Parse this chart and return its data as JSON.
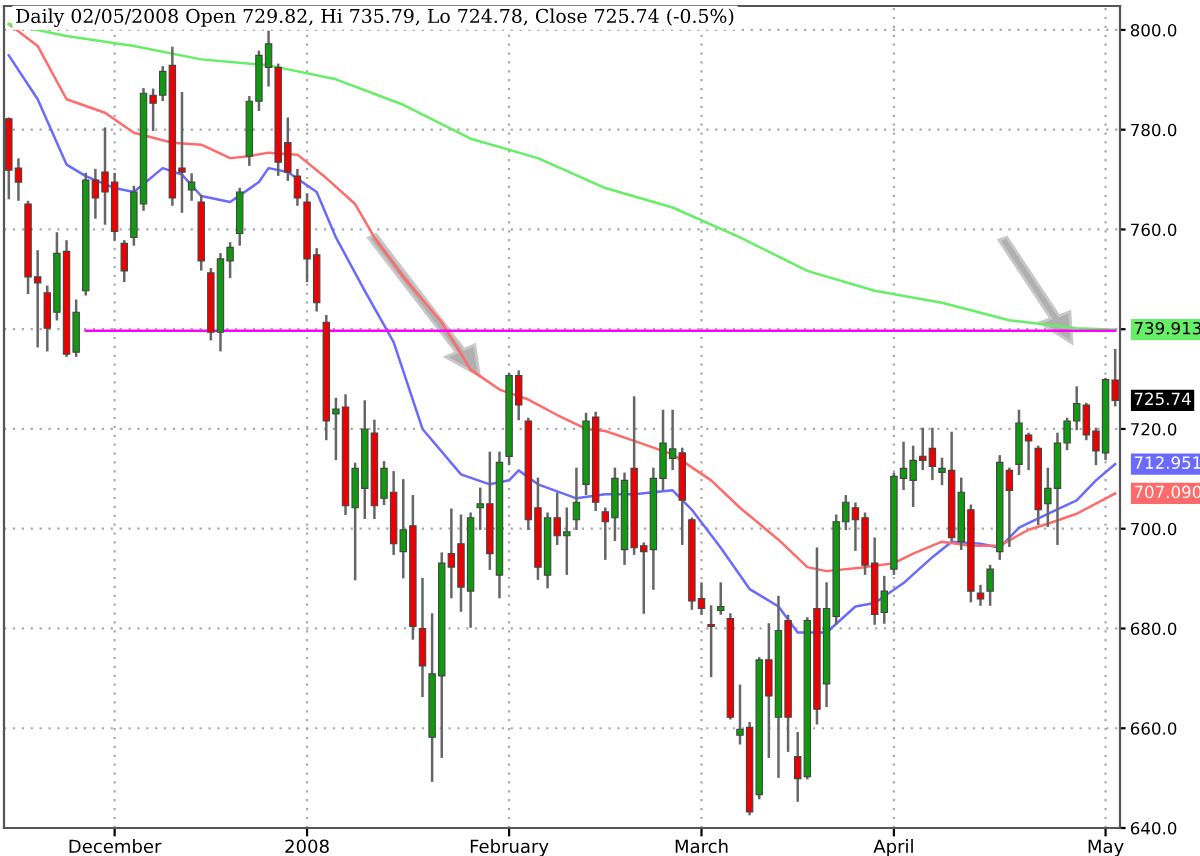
{
  "chart_data": {
    "type": "candlestick",
    "title": "Daily 02/05/2008 Open 729.82, Hi 735.79, Lo 724.78, Close 725.74 (-0.5%)",
    "categories": [
      null,
      null,
      null,
      null,
      null,
      null,
      null,
      null,
      null,
      null,
      null,
      "December",
      null,
      null,
      null,
      null,
      null,
      null,
      null,
      null,
      null,
      null,
      null,
      null,
      null,
      null,
      null,
      null,
      null,
      null,
      null,
      "2008",
      null,
      null,
      null,
      null,
      null,
      null,
      null,
      null,
      null,
      null,
      null,
      null,
      null,
      null,
      null,
      null,
      null,
      null,
      null,
      null,
      "February",
      null,
      null,
      null,
      null,
      null,
      null,
      null,
      null,
      null,
      null,
      null,
      null,
      null,
      null,
      null,
      null,
      null,
      null,
      null,
      "March",
      null,
      null,
      null,
      null,
      null,
      null,
      null,
      null,
      null,
      null,
      null,
      null,
      null,
      null,
      null,
      null,
      null,
      null,
      null,
      "April",
      null,
      null,
      null,
      null,
      null,
      null,
      null,
      null,
      null,
      null,
      null,
      null,
      null,
      null,
      null,
      null,
      null,
      null,
      null,
      null,
      null,
      "May",
      null
    ],
    "ohlc": [
      [
        782.2,
        782.2,
        766.3,
        771.9
      ],
      [
        772.3,
        774,
        766,
        769.5
      ],
      [
        765.1,
        765.5,
        747.3,
        750.5
      ],
      [
        750.5,
        755.6,
        736.6,
        749.3
      ],
      [
        747.3,
        748.5,
        735.8,
        740.2
      ],
      [
        743.4,
        759.2,
        742,
        755.2
      ],
      [
        755.6,
        757.6,
        734.7,
        735
      ],
      [
        735.4,
        745.7,
        734.7,
        743.4
      ],
      [
        747.7,
        771.1,
        747,
        769.9
      ],
      [
        769.9,
        771.9,
        762.4,
        766.3
      ],
      [
        771.5,
        780.2,
        761.2,
        767.5
      ],
      [
        769.5,
        771.1,
        758,
        759.6
      ],
      [
        757.2,
        757.6,
        749.7,
        751.7
      ],
      [
        758.4,
        768.5,
        757,
        767.5
      ],
      [
        765.1,
        788.1,
        764,
        787.3
      ],
      [
        786.9,
        788,
        780,
        785.3
      ],
      [
        786.9,
        792.5,
        786,
        791.7
      ],
      [
        792.9,
        796.4,
        765,
        766.3
      ],
      [
        772.3,
        787.3,
        763.6,
        771.5
      ],
      [
        767.9,
        771,
        766,
        769.5
      ],
      [
        765.5,
        766.7,
        752,
        753.7
      ],
      [
        751.3,
        752,
        738,
        739.4
      ],
      [
        739.4,
        755,
        735.8,
        754.1
      ],
      [
        753.7,
        757.2,
        750.5,
        756.4
      ],
      [
        759.2,
        768.1,
        757,
        767.5
      ],
      [
        774.7,
        786.5,
        773,
        785.7
      ],
      [
        785.7,
        795.6,
        784,
        794.9
      ],
      [
        792.5,
        799.6,
        788.9,
        797.2
      ],
      [
        792.5,
        793,
        771,
        773.5
      ],
      [
        777.4,
        782.2,
        770,
        771.5
      ],
      [
        770.7,
        771.9,
        765,
        766.3
      ],
      [
        765.5,
        767,
        749.7,
        754.1
      ],
      [
        754.9,
        756,
        743.8,
        745.3
      ],
      [
        741.4,
        742.6,
        718,
        721.6
      ],
      [
        723,
        726,
        714,
        724
      ],
      [
        724.4,
        726.7,
        703,
        704.6
      ],
      [
        704.2,
        713,
        689.9,
        712.1
      ],
      [
        708.1,
        725.5,
        702.2,
        720
      ],
      [
        719.2,
        721.6,
        702.2,
        704.6
      ],
      [
        706.1,
        713.3,
        705,
        712.1
      ],
      [
        707.3,
        711.3,
        695,
        697
      ],
      [
        695.4,
        709.7,
        690.3,
        699.8
      ],
      [
        700.6,
        706.5,
        678,
        680.4
      ],
      [
        680,
        689.9,
        666.5,
        672.5
      ],
      [
        658.2,
        682.8,
        649.5,
        670.9
      ],
      [
        670.5,
        695,
        654.3,
        693.1
      ],
      [
        695,
        703.8,
        686.3,
        692.3
      ],
      [
        697,
        702.6,
        683.6,
        688.3
      ],
      [
        687.5,
        703,
        680.4,
        702.2
      ],
      [
        704.2,
        708,
        700,
        705
      ],
      [
        705,
        715.2,
        692,
        695
      ],
      [
        690.7,
        715.2,
        686.3,
        713.3
      ],
      [
        714.5,
        731,
        713,
        730.7
      ],
      [
        730.7,
        731.5,
        722,
        724.8
      ],
      [
        721.6,
        722,
        700,
        701.8
      ],
      [
        704.2,
        710,
        690,
        692.3
      ],
      [
        690.7,
        703,
        688.3,
        702.2
      ],
      [
        702.2,
        707,
        697,
        698.6
      ],
      [
        698.6,
        704,
        691,
        699.4
      ],
      [
        701.8,
        712,
        700,
        705.3
      ],
      [
        708.9,
        723,
        707,
        721.6
      ],
      [
        722.4,
        723.2,
        703.8,
        705.3
      ],
      [
        703.4,
        704,
        694,
        701.4
      ],
      [
        702.2,
        712,
        697.8,
        710.1
      ],
      [
        695.8,
        711,
        693,
        709.7
      ],
      [
        712.1,
        726.3,
        695,
        696.2
      ],
      [
        696.6,
        697,
        683.2,
        695.4
      ],
      [
        695.8,
        712,
        688,
        710.1
      ],
      [
        710.1,
        723.6,
        708,
        717.2
      ],
      [
        714.1,
        723.6,
        712,
        716
      ],
      [
        715.2,
        716,
        697,
        705.7
      ],
      [
        701.8,
        702,
        684,
        685.5
      ],
      [
        686,
        689,
        683,
        684
      ],
      [
        680.8,
        684.4,
        670.5,
        680.4
      ],
      [
        683.6,
        689,
        683,
        684.4
      ],
      [
        682,
        682.8,
        662,
        662.2
      ],
      [
        658.6,
        668.5,
        657,
        659.8
      ],
      [
        660.2,
        661,
        642.8,
        643.2
      ],
      [
        646.7,
        674,
        646,
        673.7
      ],
      [
        673.7,
        680.8,
        654.3,
        666.5
      ],
      [
        662.2,
        686.3,
        650.3,
        679.6
      ],
      [
        681.6,
        682.5,
        655.5,
        662.2
      ],
      [
        654.3,
        659,
        645.5,
        649.9
      ],
      [
        650.3,
        682,
        650,
        681.6
      ],
      [
        684,
        696,
        661,
        663.8
      ],
      [
        668.9,
        689,
        664.5,
        684
      ],
      [
        682.4,
        702.6,
        681,
        701.4
      ],
      [
        701.4,
        706.5,
        700,
        705.3
      ],
      [
        704.2,
        705,
        695.8,
        701.8
      ],
      [
        702.2,
        703,
        691,
        692.7
      ],
      [
        693.1,
        698,
        681,
        682.8
      ],
      [
        683.2,
        690.3,
        681.2,
        687.5
      ],
      [
        691.9,
        711,
        691,
        710.5
      ],
      [
        710.1,
        717.2,
        708,
        712.1
      ],
      [
        709.7,
        716.4,
        704.6,
        713.7
      ],
      [
        714.5,
        720,
        712,
        713.7
      ],
      [
        716.1,
        720,
        710,
        712.5
      ],
      [
        711.3,
        714,
        709,
        712.1
      ],
      [
        711.7,
        719.2,
        697.8,
        698.2
      ],
      [
        697.4,
        710,
        696,
        707.3
      ],
      [
        703.8,
        704.6,
        685.5,
        687.5
      ],
      [
        687.1,
        688.5,
        684.8,
        685.9
      ],
      [
        687.5,
        692.5,
        684.8,
        691.9
      ],
      [
        695.4,
        714.5,
        694,
        713.3
      ],
      [
        711.7,
        712,
        696.6,
        707.7
      ],
      [
        712.9,
        723.6,
        711,
        721.2
      ],
      [
        718.8,
        719,
        712,
        717.6
      ],
      [
        716.1,
        716.4,
        701,
        703.8
      ],
      [
        705,
        712,
        700.6,
        708.1
      ],
      [
        708.1,
        719,
        697,
        717.2
      ],
      [
        717.2,
        722,
        716,
        721.6
      ],
      [
        721.6,
        728.3,
        720,
        725.1
      ],
      [
        724.8,
        725,
        718,
        718.8
      ],
      [
        719.6,
        720,
        713,
        715.6
      ],
      [
        715.2,
        730,
        714,
        729.9
      ],
      [
        729.82,
        735.79,
        724.78,
        725.74
      ]
    ],
    "series": [
      {
        "type": "line",
        "color": "#6a6aff",
        "values": [
          794.9,
          null,
          null,
          786.1,
          null,
          null,
          773,
          null,
          770.7,
          null,
          null,
          768.3,
          null,
          767.5,
          null,
          null,
          772.3,
          null,
          771,
          null,
          766.7,
          null,
          null,
          765.5,
          null,
          null,
          769.5,
          772.3,
          null,
          771.5,
          null,
          null,
          767.5,
          null,
          758.4,
          null,
          null,
          747.7,
          null,
          null,
          737.4,
          null,
          null,
          720,
          null,
          null,
          null,
          710.9,
          null,
          null,
          708.9,
          null,
          709.7,
          711.7,
          null,
          708.9,
          null,
          null,
          null,
          706.1,
          null,
          null,
          706.9,
          null,
          null,
          706.9,
          null,
          null,
          null,
          707.7,
          null,
          703.8,
          null,
          null,
          696.2,
          null,
          null,
          687.9,
          null,
          null,
          684.4,
          null,
          679.2,
          null,
          null,
          679.2,
          null,
          null,
          684.4,
          null,
          685.1,
          null,
          null,
          689.1,
          null,
          null,
          694.3,
          null,
          697.4,
          null,
          null,
          697,
          null,
          696.2,
          null,
          700.2,
          null,
          null,
          703,
          null,
          null,
          705.7,
          null,
          709.7,
          null,
          712.951
        ],
        "value_labels": [
          null,
          null,
          null,
          null,
          null,
          null,
          null,
          null,
          null,
          null,
          null,
          null,
          null,
          null,
          null,
          null,
          null,
          null,
          null,
          null,
          null,
          null,
          null,
          null,
          null,
          null,
          null,
          null,
          null,
          null,
          null,
          null,
          null,
          null,
          null,
          null,
          null,
          null,
          null,
          null,
          null,
          null,
          null,
          null,
          null,
          null,
          null,
          null,
          null,
          null,
          null,
          null,
          null,
          null,
          null,
          null,
          null,
          null,
          null,
          null,
          null,
          null,
          null,
          null,
          null,
          null,
          null,
          null,
          null,
          null,
          null,
          null,
          null,
          null,
          null,
          null,
          null,
          null,
          null,
          null,
          null,
          null,
          null,
          null,
          null,
          null,
          null,
          null,
          null,
          null,
          null,
          null,
          null,
          null,
          null,
          null,
          null,
          null,
          null,
          null,
          null,
          null,
          null,
          null,
          null,
          null,
          null,
          null,
          null,
          null,
          null,
          null,
          null,
          null,
          null,
          "712.951"
        ]
      },
      {
        "type": "line",
        "color": "#ff6a6a",
        "values": [
          801.2,
          null,
          null,
          796.8,
          null,
          null,
          786.1,
          null,
          null,
          null,
          783.4,
          null,
          null,
          779.4,
          null,
          null,
          null,
          777.4,
          null,
          null,
          777,
          null,
          null,
          774.3,
          null,
          774.7,
          null,
          775.4,
          null,
          null,
          775,
          null,
          null,
          770.3,
          null,
          null,
          765.1,
          null,
          758.4,
          null,
          null,
          750.5,
          null,
          null,
          null,
          741.4,
          null,
          null,
          731.9,
          null,
          null,
          727.9,
          null,
          null,
          725.9,
          null,
          null,
          722.8,
          null,
          null,
          720,
          null,
          719.6,
          null,
          null,
          717.6,
          null,
          null,
          null,
          714.9,
          null,
          null,
          null,
          709.7,
          null,
          null,
          704.2,
          null,
          null,
          null,
          697.8,
          null,
          null,
          692.3,
          null,
          691.5,
          null,
          null,
          null,
          692.3,
          null,
          null,
          693.1,
          null,
          695,
          null,
          null,
          697.4,
          null,
          null,
          696.6,
          null,
          null,
          696.6,
          null,
          null,
          699.8,
          null,
          701,
          null,
          null,
          703,
          null,
          null,
          null,
          707.09
        ],
        "value_labels": [
          null,
          null,
          null,
          null,
          null,
          null,
          null,
          null,
          null,
          null,
          null,
          null,
          null,
          null,
          null,
          null,
          null,
          null,
          null,
          null,
          null,
          null,
          null,
          null,
          null,
          null,
          null,
          null,
          null,
          null,
          null,
          null,
          null,
          null,
          null,
          null,
          null,
          null,
          null,
          null,
          null,
          null,
          null,
          null,
          null,
          null,
          null,
          null,
          null,
          null,
          null,
          null,
          null,
          null,
          null,
          null,
          null,
          null,
          null,
          null,
          null,
          null,
          null,
          null,
          null,
          null,
          null,
          null,
          null,
          null,
          null,
          null,
          null,
          null,
          null,
          null,
          null,
          null,
          null,
          null,
          null,
          null,
          null,
          null,
          null,
          null,
          null,
          null,
          null,
          null,
          null,
          null,
          null,
          null,
          null,
          null,
          null,
          null,
          null,
          null,
          null,
          null,
          null,
          null,
          null,
          null,
          null,
          null,
          null,
          null,
          null,
          null,
          null,
          null,
          null,
          "707.090"
        ]
      },
      {
        "type": "line",
        "color": "#66ee66",
        "values": [
          801.2,
          null,
          null,
          null,
          null,
          null,
          798.8,
          null,
          null,
          null,
          null,
          null,
          null,
          796.8,
          null,
          null,
          null,
          null,
          null,
          null,
          794.1,
          null,
          null,
          null,
          null,
          null,
          null,
          792.9,
          null,
          null,
          null,
          null,
          null,
          null,
          790.1,
          null,
          null,
          null,
          null,
          null,
          null,
          785,
          null,
          null,
          null,
          null,
          null,
          null,
          778.2,
          null,
          null,
          null,
          null,
          null,
          null,
          774.3,
          null,
          null,
          null,
          null,
          null,
          null,
          768.3,
          null,
          null,
          null,
          null,
          null,
          null,
          764.4,
          null,
          null,
          null,
          null,
          null,
          null,
          758.4,
          null,
          null,
          null,
          null,
          null,
          null,
          751.7,
          null,
          null,
          null,
          null,
          null,
          null,
          747.7,
          null,
          null,
          null,
          null,
          null,
          null,
          745.3,
          null,
          null,
          null,
          null,
          null,
          null,
          741.8,
          null,
          null,
          null,
          null,
          null,
          null,
          740.2,
          null,
          null,
          null,
          739.913
        ],
        "value_labels": [
          null,
          null,
          null,
          null,
          null,
          null,
          null,
          null,
          null,
          null,
          null,
          null,
          null,
          null,
          null,
          null,
          null,
          null,
          null,
          null,
          null,
          null,
          null,
          null,
          null,
          null,
          null,
          null,
          null,
          null,
          null,
          null,
          null,
          null,
          null,
          null,
          null,
          null,
          null,
          null,
          null,
          null,
          null,
          null,
          null,
          null,
          null,
          null,
          null,
          null,
          null,
          null,
          null,
          null,
          null,
          null,
          null,
          null,
          null,
          null,
          null,
          null,
          null,
          null,
          null,
          null,
          null,
          null,
          null,
          null,
          null,
          null,
          null,
          null,
          null,
          null,
          null,
          null,
          null,
          null,
          null,
          null,
          null,
          null,
          null,
          null,
          null,
          null,
          null,
          null,
          null,
          null,
          null,
          null,
          null,
          null,
          null,
          null,
          null,
          null,
          null,
          null,
          null,
          null,
          null,
          null,
          null,
          null,
          null,
          null,
          null,
          null,
          null,
          null,
          null,
          "739.913"
        ]
      },
      {
        "type": "line",
        "color": "#ff00ff",
        "values": [
          null,
          null,
          null,
          null,
          null,
          null,
          null,
          null,
          739.7,
          739.7,
          739.7,
          739.7,
          739.7,
          739.7,
          739.7,
          739.7,
          739.7,
          739.7,
          739.7,
          739.7,
          739.7,
          739.7,
          739.7,
          739.7,
          739.7,
          739.7,
          739.7,
          739.7,
          739.7,
          739.7,
          739.7,
          739.7,
          739.7,
          739.7,
          739.7,
          739.7,
          739.7,
          739.7,
          739.7,
          739.7,
          739.7,
          739.7,
          739.7,
          739.7,
          739.7,
          739.7,
          739.7,
          739.7,
          739.7,
          739.7,
          739.7,
          739.7,
          739.7,
          739.7,
          739.7,
          739.7,
          739.7,
          739.7,
          739.7,
          739.7,
          739.7,
          739.7,
          739.7,
          739.7,
          739.7,
          739.7,
          739.7,
          739.7,
          739.7,
          739.7,
          739.7,
          739.7,
          739.7,
          739.7,
          739.7,
          739.7,
          739.7,
          739.7,
          739.7,
          739.7,
          739.7,
          739.7,
          739.7,
          739.7,
          739.7,
          739.7,
          739.7,
          739.7,
          739.7,
          739.7,
          739.7,
          739.7,
          739.7,
          739.7,
          739.7,
          739.7,
          739.7,
          739.7,
          739.7,
          739.7,
          739.7,
          739.7,
          739.7,
          739.7,
          739.7,
          739.7,
          739.7,
          739.7,
          739.7,
          739.7,
          739.7,
          739.7,
          739.7,
          739.7,
          739.7,
          739.7
        ]
      }
    ],
    "annotations": [
      "725.74"
    ],
    "ylim": [
      640,
      804.8
    ],
    "yticks": [
      {
        "value": 640,
        "label": "640.0"
      },
      {
        "value": 660,
        "label": "660.0"
      },
      {
        "value": 680,
        "label": "680.0"
      },
      {
        "value": 700,
        "label": "700.0"
      },
      {
        "value": 720,
        "label": "720.0"
      },
      {
        "value": 740,
        "label": null
      },
      {
        "value": 760,
        "label": "760.0"
      },
      {
        "value": 780,
        "label": "780.0"
      },
      {
        "value": 800,
        "label": "800.0"
      }
    ],
    "grid": true
  }
}
